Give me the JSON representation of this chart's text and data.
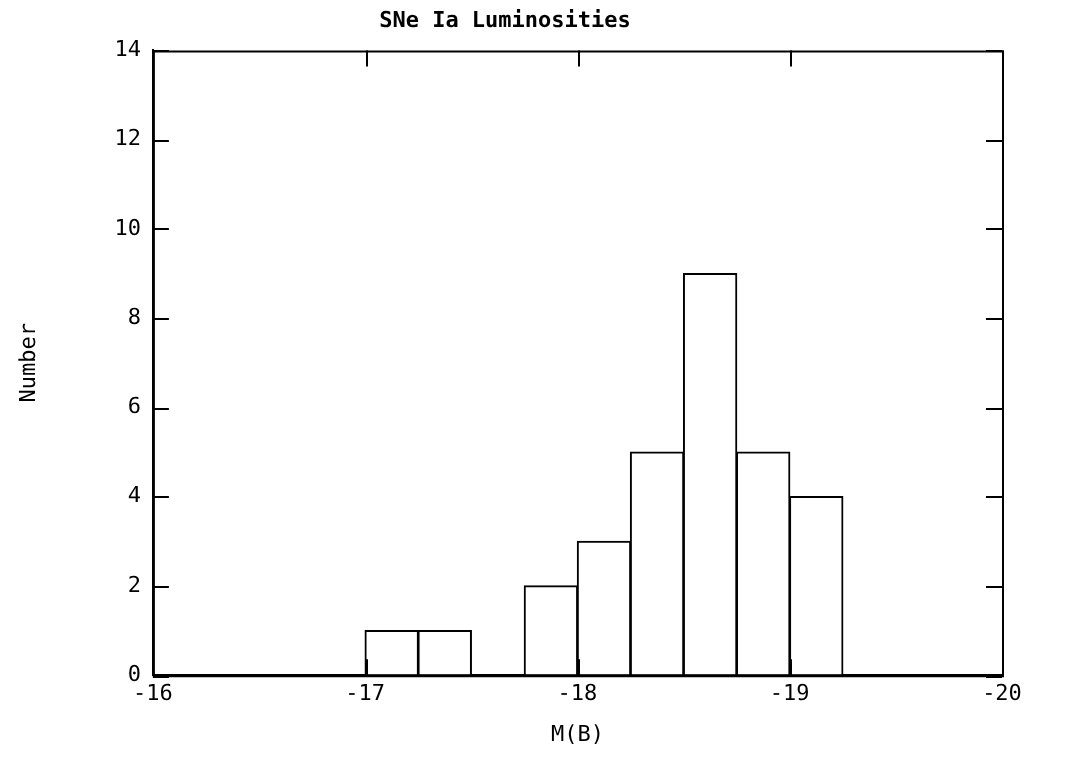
{
  "chart_data": {
    "type": "histogram",
    "title": "SNe Ia Luminosities",
    "xlabel": "M(B)",
    "ylabel": "Number",
    "bins": [
      -17,
      -17.25,
      -17.5,
      -17.75,
      -18,
      -18.25,
      -18.5,
      -18.75,
      -19,
      -19.25
    ],
    "values": [
      1,
      1,
      0,
      2,
      3,
      5,
      9,
      5,
      4
    ],
    "color": "#ffffff",
    "xlim": [
      -16,
      -20
    ],
    "xticks": [
      -16,
      -17,
      -18,
      -19,
      -20
    ],
    "ylim": [
      0,
      14
    ],
    "yticks": [
      0,
      2,
      4,
      6,
      8,
      10,
      12,
      14
    ],
    "legend": false
  }
}
